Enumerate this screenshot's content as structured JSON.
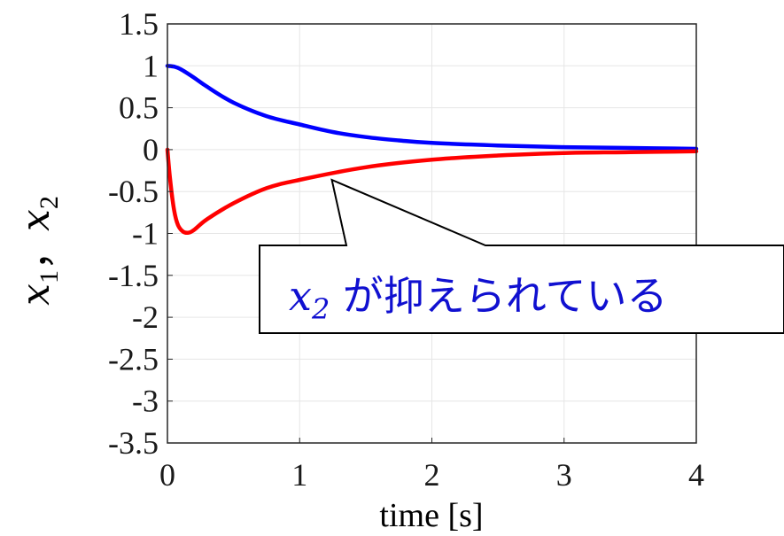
{
  "chart_data": {
    "type": "line",
    "title": "",
    "xlabel": "time [s]",
    "ylabel": {
      "var1": "x",
      "sub1": "1",
      "separator": "，",
      "var2": "x",
      "sub2": "2"
    },
    "xlim": [
      0,
      4
    ],
    "ylim": [
      -3.5,
      1.5
    ],
    "xticks": [
      "0",
      "1",
      "2",
      "3",
      "4"
    ],
    "yticks": [
      "1.5",
      "1",
      "0.5",
      "0",
      "-0.5",
      "-1",
      "-1.5",
      "-2",
      "-2.5",
      "-3",
      "-3.5"
    ],
    "grid": true,
    "series": [
      {
        "color": "#0000ff",
        "x": [
          0,
          0.05,
          0.1,
          0.2,
          0.3,
          0.5,
          0.75,
          1.0,
          1.25,
          1.5,
          1.75,
          2.0,
          2.5,
          3.0,
          3.5,
          4.0
        ],
        "y": [
          1.0,
          0.99,
          0.96,
          0.86,
          0.75,
          0.56,
          0.4,
          0.3,
          0.21,
          0.15,
          0.11,
          0.08,
          0.05,
          0.03,
          0.02,
          0.01
        ]
      },
      {
        "color": "#ff0000",
        "x": [
          0,
          0.02,
          0.05,
          0.08,
          0.12,
          0.16,
          0.2,
          0.3,
          0.5,
          0.75,
          1.0,
          1.5,
          2.0,
          2.5,
          3.0,
          3.5,
          4.0
        ],
        "y": [
          0.0,
          -0.35,
          -0.72,
          -0.9,
          -0.98,
          -0.99,
          -0.96,
          -0.83,
          -0.64,
          -0.46,
          -0.36,
          -0.21,
          -0.12,
          -0.07,
          -0.04,
          -0.03,
          -0.02
        ]
      }
    ],
    "annotation": {
      "math_var": "x",
      "math_sub": "2",
      "text": " が抑えられている",
      "target": [
        1.25,
        -0.35
      ]
    }
  }
}
